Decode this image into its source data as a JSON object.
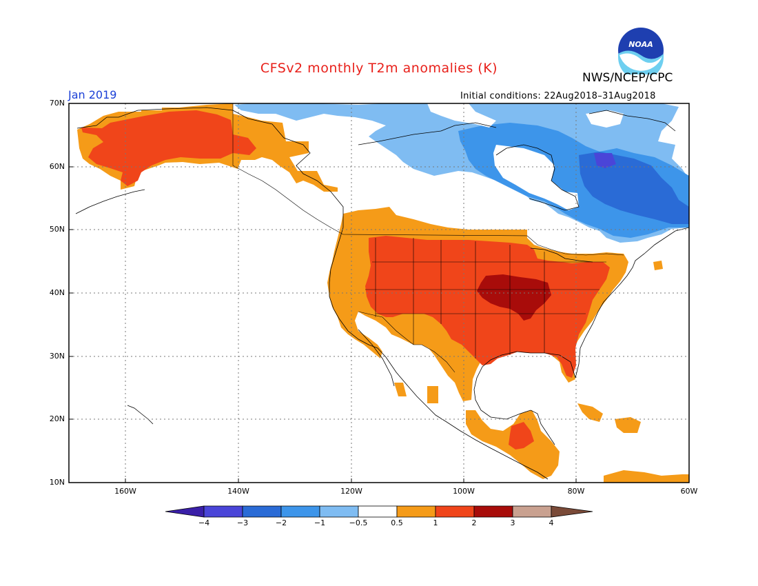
{
  "header": {
    "title": "CFSv2 monthly T2m anomalies (K)",
    "agency": "NWS/NCEP/CPC",
    "logo_text": "NOAA",
    "month": "Jan 2019",
    "initial_conditions": "Initial conditions: 22Aug2018–31Aug2018"
  },
  "axes": {
    "lat_labels": [
      "70N",
      "60N",
      "50N",
      "40N",
      "30N",
      "20N",
      "10N"
    ],
    "lon_labels": [
      "160W",
      "140W",
      "120W",
      "100W",
      "80W",
      "60W"
    ]
  },
  "colorbar": {
    "labels": [
      "−4",
      "−3",
      "−2",
      "−1",
      "−0.5",
      "0.5",
      "1",
      "2",
      "3",
      "4"
    ],
    "colors": [
      "#3a1fa8",
      "#4a45d8",
      "#2a6bd6",
      "#3d95ea",
      "#7fbcf2",
      "#ffffff",
      "#f59b18",
      "#f0451a",
      "#a80c0a",
      "#c9a190",
      "#7a4a38"
    ]
  },
  "colors": {
    "title": "#e8201a",
    "month": "#1a3fd6",
    "warm_strong": "#a80c0a",
    "warm": "#f0451a",
    "warm_weak": "#f59b18",
    "cool_weak": "#7fbcf2",
    "cool": "#3d95ea",
    "cool_strong": "#2a6bd6",
    "cool_extreme": "#4a45d8"
  }
}
